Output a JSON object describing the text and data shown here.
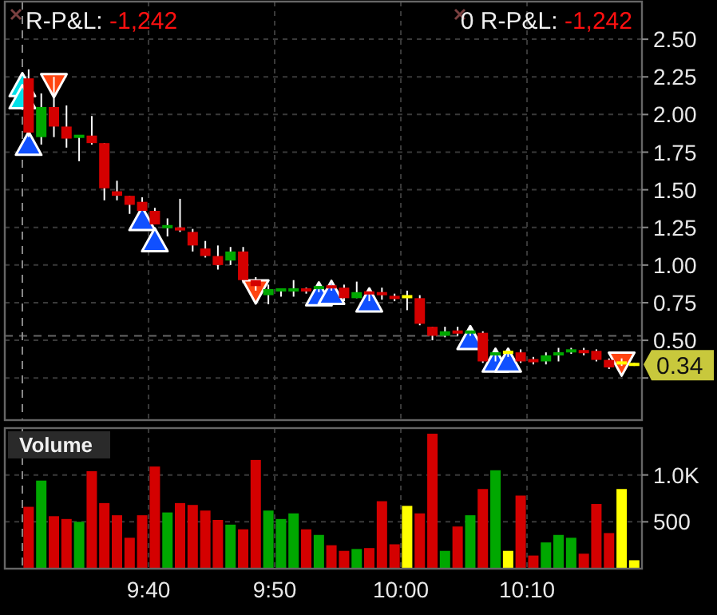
{
  "chart_data": [
    {
      "type": "candlestick",
      "x": [
        9.5083,
        9.525,
        9.5417,
        9.5583,
        9.575,
        9.5917,
        9.6083,
        9.625,
        9.6417,
        9.6583,
        9.675,
        9.6917,
        9.7083,
        9.725,
        9.7417,
        9.7583,
        9.775,
        9.7917,
        9.8083,
        9.825,
        9.8417,
        9.8583,
        9.875,
        9.8917,
        9.9083,
        9.925,
        9.9417,
        9.9583,
        9.975,
        9.9917,
        10.0083,
        10.025,
        10.0417,
        10.0583,
        10.075,
        10.0917,
        10.1083,
        10.125,
        10.1417,
        10.1583,
        10.175,
        10.1917,
        10.2083,
        10.225,
        10.2417,
        10.2583,
        10.275,
        10.2917,
        10.3083
      ],
      "ohlc": [
        [
          2.24,
          2.3,
          1.85,
          1.88
        ],
        [
          1.85,
          2.14,
          1.8,
          2.05
        ],
        [
          2.05,
          2.25,
          1.85,
          1.92
        ],
        [
          1.92,
          2.06,
          1.78,
          1.84
        ],
        [
          1.85,
          1.86,
          1.69,
          1.86
        ],
        [
          1.86,
          1.99,
          1.8,
          1.81
        ],
        [
          1.81,
          1.81,
          1.43,
          1.51
        ],
        [
          1.49,
          1.56,
          1.43,
          1.46
        ],
        [
          1.46,
          1.46,
          1.34,
          1.4
        ],
        [
          1.42,
          1.45,
          1.36,
          1.36
        ],
        [
          1.36,
          1.38,
          1.27,
          1.27
        ],
        [
          1.25,
          1.31,
          1.19,
          1.26
        ],
        [
          1.25,
          1.44,
          1.22,
          1.23
        ],
        [
          1.22,
          1.24,
          1.09,
          1.13
        ],
        [
          1.11,
          1.16,
          1.05,
          1.06
        ],
        [
          1.06,
          1.13,
          0.97,
          1.0
        ],
        [
          1.03,
          1.12,
          1.0,
          1.09
        ],
        [
          1.09,
          1.12,
          0.88,
          0.9
        ],
        [
          0.9,
          0.92,
          0.83,
          0.86
        ],
        [
          0.8,
          0.87,
          0.74,
          0.84
        ],
        [
          0.83,
          0.84,
          0.79,
          0.84
        ],
        [
          0.83,
          0.9,
          0.79,
          0.84
        ],
        [
          0.84,
          0.85,
          0.81,
          0.83
        ],
        [
          0.84,
          0.87,
          0.82,
          0.86
        ],
        [
          0.86,
          0.87,
          0.83,
          0.85
        ],
        [
          0.85,
          0.87,
          0.76,
          0.78
        ],
        [
          0.78,
          0.89,
          0.78,
          0.82
        ],
        [
          0.82,
          0.84,
          0.76,
          0.81
        ],
        [
          0.82,
          0.85,
          0.77,
          0.8
        ],
        [
          0.79,
          0.81,
          0.76,
          0.78
        ],
        [
          0.79,
          0.83,
          0.7,
          0.79
        ],
        [
          0.78,
          0.8,
          0.6,
          0.61
        ],
        [
          0.59,
          0.59,
          0.5,
          0.53
        ],
        [
          0.53,
          0.59,
          0.52,
          0.56
        ],
        [
          0.56,
          0.59,
          0.53,
          0.55
        ],
        [
          0.55,
          0.58,
          0.53,
          0.56
        ],
        [
          0.55,
          0.56,
          0.35,
          0.36
        ],
        [
          0.4,
          0.43,
          0.36,
          0.42
        ],
        [
          0.42,
          0.44,
          0.39,
          0.42
        ],
        [
          0.42,
          0.44,
          0.35,
          0.36
        ],
        [
          0.37,
          0.39,
          0.34,
          0.36
        ],
        [
          0.36,
          0.42,
          0.34,
          0.4
        ],
        [
          0.4,
          0.45,
          0.36,
          0.42
        ],
        [
          0.42,
          0.45,
          0.41,
          0.44
        ],
        [
          0.43,
          0.45,
          0.4,
          0.42
        ],
        [
          0.43,
          0.44,
          0.36,
          0.37
        ],
        [
          0.37,
          0.38,
          0.31,
          0.32
        ],
        [
          0.35,
          0.38,
          0.33,
          0.35
        ],
        [
          0.34,
          0.35,
          0.33,
          0.34
        ]
      ],
      "colors": [
        "#d40000",
        "#00a800",
        "#d40000",
        "#d40000",
        "#00a800",
        "#d40000",
        "#d40000",
        "#d40000",
        "#d40000",
        "#d40000",
        "#d40000",
        "#00a800",
        "#d40000",
        "#d40000",
        "#d40000",
        "#d40000",
        "#00a800",
        "#d40000",
        "#d40000",
        "#00a800",
        "#00a800",
        "#00a800",
        "#d40000",
        "#00a800",
        "#d40000",
        "#d40000",
        "#00a800",
        "#d40000",
        "#d40000",
        "#d40000",
        "#ffff00",
        "#d40000",
        "#d40000",
        "#00a800",
        "#d40000",
        "#00a800",
        "#d40000",
        "#00a800",
        "#ffff00",
        "#d40000",
        "#d40000",
        "#00a800",
        "#00a800",
        "#00a800",
        "#d40000",
        "#d40000",
        "#d40000",
        "#ffff00",
        "#ffff00"
      ],
      "series": [
        {
          "type": "scatter",
          "marker": "triangle",
          "color": "#00e0e8",
          "x": [
            9.5,
            9.5
          ],
          "values": [
            2.19,
            2.11
          ]
        },
        {
          "type": "scatter",
          "marker": "triangle",
          "color": "#1050ff",
          "x": [
            9.5083,
            9.6583,
            9.675,
            9.8917,
            9.9083,
            9.9583,
            10.0917,
            10.125,
            10.1417
          ],
          "values": [
            1.8,
            1.3,
            1.16,
            0.8,
            0.81,
            0.76,
            0.51,
            0.36,
            0.36
          ]
        },
        {
          "type": "scatter",
          "marker": "triangle_down",
          "color": "#ff4410",
          "x": [
            9.5417,
            9.8083,
            10.2917
          ],
          "values": [
            2.2,
            0.83,
            0.35
          ]
        }
      ],
      "xlim": [
        9.4768,
        10.3185
      ],
      "xticks": [
        {
          "value": 9.6667,
          "label": null
        },
        {
          "value": 9.8333,
          "label": null
        },
        {
          "value": 10.0,
          "label": null
        },
        {
          "value": 10.1667,
          "label": null
        }
      ],
      "ylim": [
        -0.03,
        2.75
      ],
      "yticks": [
        {
          "value": 0.25,
          "label": null
        },
        {
          "value": 0.5,
          "label": "0.50"
        },
        {
          "value": 0.75,
          "label": "0.75"
        },
        {
          "value": 1.0,
          "label": "1.00"
        },
        {
          "value": 1.25,
          "label": "1.25"
        },
        {
          "value": 1.5,
          "label": "1.50"
        },
        {
          "value": 1.75,
          "label": "1.75"
        },
        {
          "value": 2.0,
          "label": "2.00"
        },
        {
          "value": 2.25,
          "label": "2.25"
        },
        {
          "value": 2.5,
          "label": "2.50"
        }
      ],
      "grid": true,
      "tick_labels": "y",
      "ref_lines": [
        {
          "axis": "y",
          "value": 0.53,
          "color": "#666666",
          "line_style": "dashed"
        },
        {
          "axis": "x",
          "value": 9.5,
          "color": "#888888",
          "line_style": "dashed"
        }
      ],
      "annotations": [
        "R-P&L: -1,242",
        "0 R-P&L: -1,242",
        "0.34"
      ]
    },
    {
      "type": "bar",
      "title": "Volume",
      "x": [
        9.5083,
        9.525,
        9.5417,
        9.5583,
        9.575,
        9.5917,
        9.6083,
        9.625,
        9.6417,
        9.6583,
        9.675,
        9.6917,
        9.7083,
        9.725,
        9.7417,
        9.7583,
        9.775,
        9.7917,
        9.8083,
        9.825,
        9.8417,
        9.8583,
        9.875,
        9.8917,
        9.9083,
        9.925,
        9.9417,
        9.9583,
        9.975,
        9.9917,
        10.0083,
        10.025,
        10.0417,
        10.0583,
        10.075,
        10.0917,
        10.1083,
        10.125,
        10.1417,
        10.1583,
        10.175,
        10.1917,
        10.2083,
        10.225,
        10.2417,
        10.2583,
        10.275,
        10.2917,
        10.3083
      ],
      "values": [
        660,
        940,
        560,
        530,
        500,
        1040,
        700,
        570,
        330,
        570,
        1090,
        600,
        700,
        680,
        620,
        520,
        470,
        420,
        1160,
        620,
        530,
        590,
        420,
        360,
        250,
        190,
        210,
        220,
        720,
        260,
        670,
        590,
        1440,
        190,
        450,
        570,
        850,
        1050,
        190,
        780,
        140,
        280,
        360,
        330,
        160,
        690,
        380,
        850,
        90
      ],
      "colors": [
        "#d40000",
        "#00a800",
        "#d40000",
        "#d40000",
        "#00a800",
        "#d40000",
        "#d40000",
        "#d40000",
        "#d40000",
        "#d40000",
        "#d40000",
        "#00a800",
        "#d40000",
        "#d40000",
        "#d40000",
        "#d40000",
        "#00a800",
        "#d40000",
        "#d40000",
        "#00a800",
        "#00a800",
        "#00a800",
        "#d40000",
        "#00a800",
        "#d40000",
        "#d40000",
        "#00a800",
        "#d40000",
        "#d40000",
        "#d40000",
        "#ffff00",
        "#d40000",
        "#d40000",
        "#00a800",
        "#d40000",
        "#00a800",
        "#d40000",
        "#00a800",
        "#ffff00",
        "#d40000",
        "#d40000",
        "#00a800",
        "#00a800",
        "#00a800",
        "#d40000",
        "#d40000",
        "#d40000",
        "#ffff00",
        "#ffff00"
      ],
      "xlim": [
        9.4768,
        10.3185
      ],
      "xticks": [
        {
          "value": 9.6667,
          "label": "9:40"
        },
        {
          "value": 9.8333,
          "label": "9:50"
        },
        {
          "value": 10.0,
          "label": "10:00"
        },
        {
          "value": 10.1667,
          "label": "10:10"
        }
      ],
      "ylim": [
        0,
        1500
      ],
      "yticks": [
        500,
        {
          "value": 1000,
          "label": "1.0K"
        }
      ],
      "grid": true,
      "ref_lines": [
        {
          "axis": "x",
          "value": 9.5,
          "color": "#888888",
          "line_style": "dashed"
        }
      ]
    }
  ]
}
